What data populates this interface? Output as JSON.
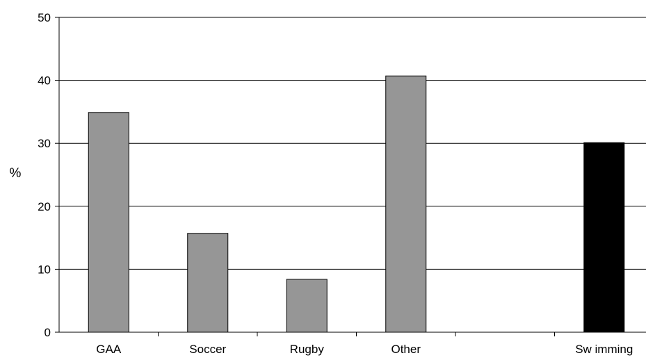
{
  "chart_data": {
    "type": "bar",
    "categories": [
      "GAA",
      "Soccer",
      "Rugby",
      "Other",
      "",
      "Sw imming"
    ],
    "values": [
      34.9,
      15.7,
      8.4,
      40.7,
      null,
      30.1
    ],
    "bar_colors": [
      "#969696",
      "#969696",
      "#969696",
      "#969696",
      "#969696",
      "#000000"
    ],
    "title": "",
    "xlabel": "",
    "ylabel": "%",
    "ylim": [
      0,
      50
    ],
    "yticks": [
      "0",
      "10",
      "20",
      "30",
      "40",
      "50"
    ],
    "grid": true,
    "legend": "none"
  }
}
